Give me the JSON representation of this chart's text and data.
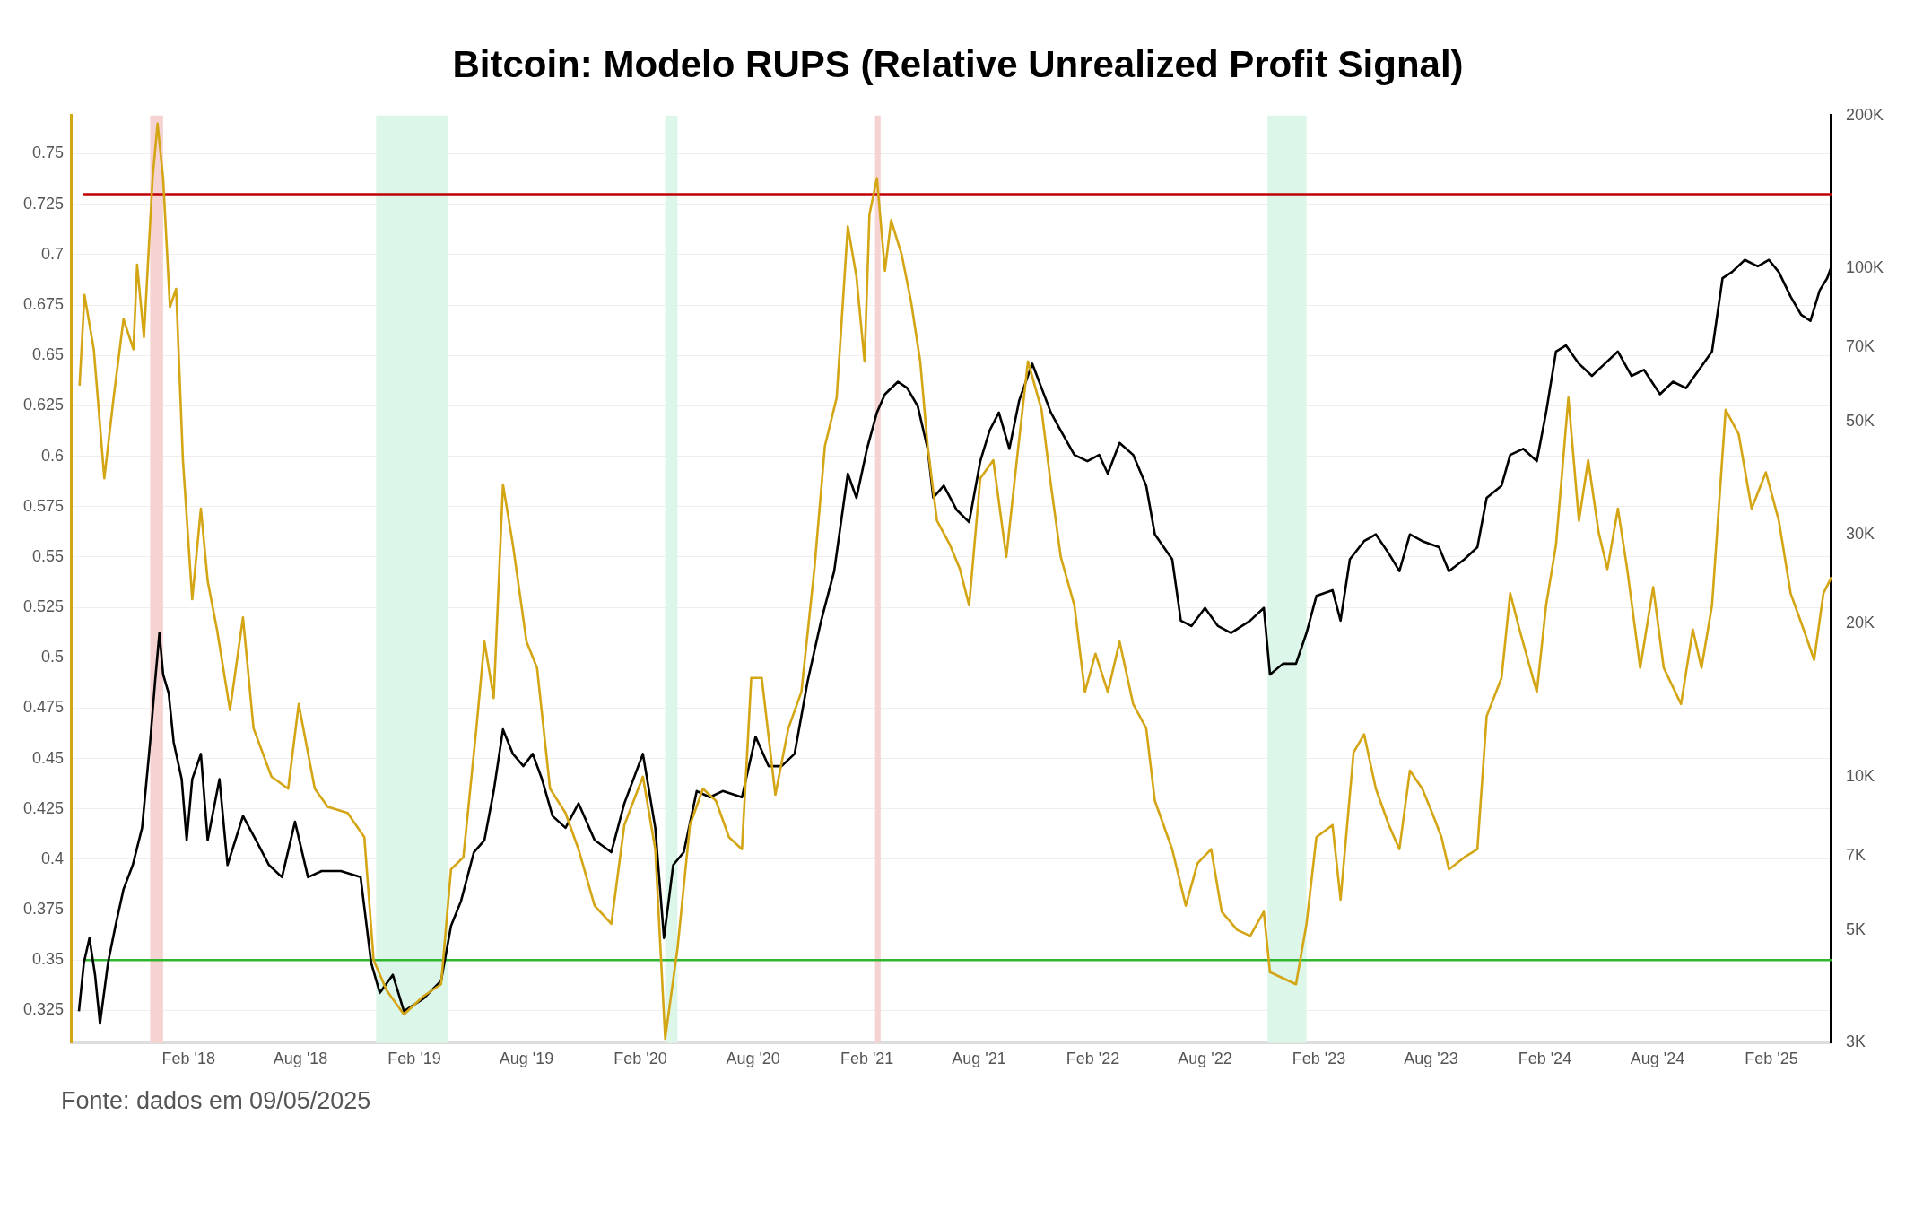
{
  "chart_data": {
    "type": "line",
    "title": "Bitcoin: Modelo RUPS (Relative Unrealized Profit Signal)",
    "annotations": [
      "Fonte: dados em 09/05/2025"
    ],
    "xlim": [
      "2017-07-26",
      "2025-05-09"
    ],
    "xticks": [
      {
        "value": "2018-02-01",
        "label": "Feb '18"
      },
      {
        "value": "2018-08-01",
        "label": "Aug '18"
      },
      {
        "value": "2019-02-01",
        "label": "Feb '19"
      },
      {
        "value": "2019-08-01",
        "label": "Aug '19"
      },
      {
        "value": "2020-02-01",
        "label": "Feb '20"
      },
      {
        "value": "2020-08-01",
        "label": "Aug '20"
      },
      {
        "value": "2021-02-01",
        "label": "Feb '21"
      },
      {
        "value": "2021-08-01",
        "label": "Aug '21"
      },
      {
        "value": "2022-02-01",
        "label": "Feb '22"
      },
      {
        "value": "2022-08-01",
        "label": "Aug '22"
      },
      {
        "value": "2023-02-01",
        "label": "Feb '23"
      },
      {
        "value": "2023-08-01",
        "label": "Aug '23"
      },
      {
        "value": "2024-02-01",
        "label": "Feb '24"
      },
      {
        "value": "2024-08-01",
        "label": "Aug '24"
      },
      {
        "value": "2025-02-01",
        "label": "Feb '25"
      }
    ],
    "ylim": [
      0.309,
      0.769
    ],
    "yticks": [
      0.325,
      0.35,
      0.375,
      0.4,
      0.425,
      0.45,
      0.475,
      0.5,
      0.525,
      0.55,
      0.575,
      0.6,
      0.625,
      0.65,
      0.675,
      0.7,
      0.725,
      0.75
    ],
    "y2lim": [
      3000,
      200000
    ],
    "y2ticks": [
      {
        "value": 3000,
        "label": "3K"
      },
      {
        "value": 5000,
        "label": "5K"
      },
      {
        "value": 7000,
        "label": "7K"
      },
      {
        "value": 10000,
        "label": "10K"
      },
      {
        "value": 20000,
        "label": "20K"
      },
      {
        "value": 30000,
        "label": "30K"
      },
      {
        "value": 50000,
        "label": "50K"
      },
      {
        "value": 70000,
        "label": "70K"
      },
      {
        "value": 100000,
        "label": "100K"
      },
      {
        "value": 200000,
        "label": "200K"
      }
    ],
    "log": "y2",
    "grid": "y",
    "legend": false,
    "marker": "none",
    "line_style": "solid",
    "ref_lines": [
      {
        "axis": "y",
        "value": 0.73,
        "color": "#c00000"
      },
      {
        "axis": "y",
        "value": 0.35,
        "color": "#2fb52f"
      }
    ],
    "bands": [
      {
        "axis": "x",
        "from": "2017-12-01",
        "to": "2017-12-22",
        "color": "#f6d3d3"
      },
      {
        "axis": "x",
        "from": "2021-02-14",
        "to": "2021-02-23",
        "color": "#f6d3d3"
      },
      {
        "axis": "x",
        "from": "2018-12-01",
        "to": "2019-03-27",
        "color": "#dcf7e9"
      },
      {
        "axis": "x",
        "from": "2020-03-12",
        "to": "2020-04-01",
        "color": "#dcf7e9"
      },
      {
        "axis": "x",
        "from": "2022-11-10",
        "to": "2023-01-12",
        "color": "#dcf7e9"
      }
    ],
    "series": [
      {
        "color": "#d4a514",
        "axis": "y",
        "x": [
          "2017-08-09",
          "2017-08-17",
          "2017-09-01",
          "2017-09-18",
          "2017-10-03",
          "2017-10-19",
          "2017-11-04",
          "2017-11-10",
          "2017-11-21",
          "2017-12-05",
          "2017-12-13",
          "2017-12-22",
          "2018-01-02",
          "2018-01-12",
          "2018-01-23",
          "2018-02-07",
          "2018-02-21",
          "2018-03-04",
          "2018-03-19",
          "2018-04-09",
          "2018-04-30",
          "2018-05-17",
          "2018-06-15",
          "2018-07-12",
          "2018-07-29",
          "2018-08-24",
          "2018-09-14",
          "2018-10-16",
          "2018-11-12",
          "2018-11-27",
          "2018-12-18",
          "2019-01-15",
          "2019-02-15",
          "2019-03-16",
          "2019-04-01",
          "2019-04-21",
          "2019-05-12",
          "2019-05-25",
          "2019-06-09",
          "2019-06-24",
          "2019-07-10",
          "2019-08-01",
          "2019-08-18",
          "2019-09-08",
          "2019-10-03",
          "2019-10-24",
          "2019-11-19",
          "2019-12-16",
          "2020-01-06",
          "2020-02-05",
          "2020-02-25",
          "2020-03-12",
          "2020-04-01",
          "2020-04-21",
          "2020-05-12",
          "2020-06-02",
          "2020-06-23",
          "2020-07-14",
          "2020-07-29",
          "2020-08-15",
          "2020-09-06",
          "2020-09-27",
          "2020-10-18",
          "2020-11-08",
          "2020-11-25",
          "2020-12-14",
          "2021-01-01",
          "2021-01-15",
          "2021-01-28",
          "2021-02-05",
          "2021-02-17",
          "2021-03-02",
          "2021-03-12",
          "2021-03-29",
          "2021-04-13",
          "2021-04-28",
          "2021-05-10",
          "2021-05-25",
          "2021-06-15",
          "2021-07-01",
          "2021-07-16",
          "2021-08-03",
          "2021-08-24",
          "2021-09-14",
          "2021-10-01",
          "2021-10-19",
          "2021-11-10",
          "2021-11-25",
          "2021-12-11",
          "2022-01-02",
          "2022-01-19",
          "2022-02-05",
          "2022-02-25",
          "2022-03-16",
          "2022-04-07",
          "2022-04-28",
          "2022-05-12",
          "2022-06-09",
          "2022-07-01",
          "2022-07-20",
          "2022-08-11",
          "2022-08-28",
          "2022-09-22",
          "2022-10-13",
          "2022-11-04",
          "2022-11-14",
          "2022-12-05",
          "2022-12-26",
          "2023-01-12",
          "2023-01-28",
          "2023-02-23",
          "2023-03-08",
          "2023-03-29",
          "2023-04-15",
          "2023-05-04",
          "2023-05-25",
          "2023-06-11",
          "2023-06-28",
          "2023-07-18",
          "2023-08-03",
          "2023-08-18",
          "2023-08-30",
          "2023-09-24",
          "2023-10-15",
          "2023-10-30",
          "2023-11-23",
          "2023-12-07",
          "2023-12-22",
          "2024-01-19",
          "2024-02-03",
          "2024-02-19",
          "2024-03-10",
          "2024-03-27",
          "2024-04-11",
          "2024-04-28",
          "2024-05-12",
          "2024-05-29",
          "2024-06-13",
          "2024-07-04",
          "2024-07-25",
          "2024-08-11",
          "2024-09-08",
          "2024-09-27",
          "2024-10-11",
          "2024-10-28",
          "2024-11-19",
          "2024-12-10",
          "2024-12-31",
          "2025-01-23",
          "2025-02-13",
          "2025-03-04",
          "2025-03-25",
          "2025-04-11",
          "2025-04-26",
          "2025-05-09"
        ],
        "values": [
          0.635,
          0.68,
          0.653,
          0.589,
          0.629,
          0.668,
          0.653,
          0.695,
          0.659,
          0.738,
          0.765,
          0.738,
          0.674,
          0.683,
          0.598,
          0.529,
          0.574,
          0.538,
          0.514,
          0.474,
          0.52,
          0.465,
          0.441,
          0.435,
          0.477,
          0.435,
          0.426,
          0.423,
          0.411,
          0.35,
          0.335,
          0.323,
          0.332,
          0.338,
          0.395,
          0.401,
          0.465,
          0.508,
          0.48,
          0.586,
          0.556,
          0.508,
          0.495,
          0.435,
          0.423,
          0.405,
          0.377,
          0.368,
          0.417,
          0.441,
          0.405,
          0.311,
          0.356,
          0.417,
          0.435,
          0.429,
          0.411,
          0.405,
          0.49,
          0.49,
          0.432,
          0.465,
          0.483,
          0.544,
          0.605,
          0.629,
          0.714,
          0.689,
          0.647,
          0.72,
          0.738,
          0.692,
          0.717,
          0.7,
          0.677,
          0.647,
          0.605,
          0.568,
          0.556,
          0.544,
          0.526,
          0.589,
          0.598,
          0.55,
          0.598,
          0.647,
          0.623,
          0.586,
          0.55,
          0.526,
          0.483,
          0.502,
          0.483,
          0.508,
          0.477,
          0.465,
          0.429,
          0.405,
          0.377,
          0.398,
          0.405,
          0.374,
          0.365,
          0.362,
          0.374,
          0.344,
          0.341,
          0.338,
          0.368,
          0.411,
          0.417,
          0.38,
          0.453,
          0.462,
          0.435,
          0.417,
          0.405,
          0.444,
          0.435,
          0.423,
          0.411,
          0.395,
          0.401,
          0.405,
          0.471,
          0.49,
          0.532,
          0.514,
          0.483,
          0.526,
          0.556,
          0.629,
          0.568,
          0.598,
          0.562,
          0.544,
          0.574,
          0.544,
          0.495,
          0.535,
          0.495,
          0.477,
          0.514,
          0.495,
          0.526,
          0.623,
          0.611,
          0.574,
          0.592,
          0.568,
          0.532,
          0.514,
          0.499,
          0.532,
          0.54
        ]
      },
      {
        "color": "#000000",
        "axis": "y2",
        "x": [
          "2017-08-08",
          "2017-08-16",
          "2017-08-25",
          "2017-09-03",
          "2017-09-11",
          "2017-09-24",
          "2017-10-06",
          "2017-10-19",
          "2017-11-03",
          "2017-11-18",
          "2017-12-01",
          "2017-12-09",
          "2017-12-16",
          "2017-12-22",
          "2017-12-31",
          "2018-01-08",
          "2018-01-21",
          "2018-01-29",
          "2018-02-07",
          "2018-02-21",
          "2018-03-04",
          "2018-03-23",
          "2018-04-05",
          "2018-04-30",
          "2018-05-21",
          "2018-06-11",
          "2018-07-02",
          "2018-07-23",
          "2018-08-13",
          "2018-09-04",
          "2018-10-05",
          "2018-11-06",
          "2018-11-23",
          "2018-12-07",
          "2018-12-28",
          "2019-01-15",
          "2019-02-15",
          "2019-03-16",
          "2019-04-01",
          "2019-04-17",
          "2019-05-08",
          "2019-05-25",
          "2019-06-09",
          "2019-06-24",
          "2019-07-10",
          "2019-07-27",
          "2019-08-11",
          "2019-08-26",
          "2019-09-12",
          "2019-10-03",
          "2019-10-24",
          "2019-11-19",
          "2019-12-16",
          "2020-01-06",
          "2020-02-05",
          "2020-02-25",
          "2020-03-10",
          "2020-03-25",
          "2020-04-11",
          "2020-05-02",
          "2020-05-23",
          "2020-06-13",
          "2020-07-14",
          "2020-08-05",
          "2020-08-26",
          "2020-09-16",
          "2020-10-07",
          "2020-10-28",
          "2020-11-19",
          "2020-12-10",
          "2021-01-01",
          "2021-01-15",
          "2021-02-01",
          "2021-02-17",
          "2021-03-02",
          "2021-03-23",
          "2021-04-07",
          "2021-04-24",
          "2021-05-10",
          "2021-05-19",
          "2021-06-05",
          "2021-06-26",
          "2021-07-16",
          "2021-08-03",
          "2021-08-18",
          "2021-09-02",
          "2021-09-19",
          "2021-10-05",
          "2021-10-26",
          "2021-11-10",
          "2021-11-25",
          "2021-12-11",
          "2022-01-02",
          "2022-01-23",
          "2022-02-11",
          "2022-02-25",
          "2022-03-16",
          "2022-04-07",
          "2022-04-28",
          "2022-05-12",
          "2022-06-09",
          "2022-06-23",
          "2022-07-10",
          "2022-08-01",
          "2022-08-22",
          "2022-09-12",
          "2022-10-13",
          "2022-11-04",
          "2022-11-14",
          "2022-12-05",
          "2022-12-26",
          "2023-01-12",
          "2023-01-28",
          "2023-02-23",
          "2023-03-08",
          "2023-03-23",
          "2023-04-15",
          "2023-05-04",
          "2023-05-25",
          "2023-06-11",
          "2023-06-28",
          "2023-07-18",
          "2023-08-14",
          "2023-08-30",
          "2023-09-24",
          "2023-10-15",
          "2023-10-30",
          "2023-11-23",
          "2023-12-07",
          "2023-12-28",
          "2024-01-19",
          "2024-02-03",
          "2024-02-19",
          "2024-03-06",
          "2024-03-27",
          "2024-04-17",
          "2024-05-08",
          "2024-05-29",
          "2024-06-20",
          "2024-07-10",
          "2024-08-05",
          "2024-08-26",
          "2024-09-16",
          "2024-10-07",
          "2024-10-28",
          "2024-11-14",
          "2024-11-29",
          "2024-12-20",
          "2025-01-10",
          "2025-01-28",
          "2025-02-13",
          "2025-03-04",
          "2025-03-21",
          "2025-04-05",
          "2025-04-20",
          "2025-05-02",
          "2025-05-09"
        ],
        "values": [
          3460,
          4310,
          4820,
          4080,
          3270,
          4310,
          5090,
          6010,
          6710,
          7940,
          11700,
          15400,
          19200,
          15900,
          14600,
          11700,
          9900,
          7510,
          9900,
          11100,
          7510,
          9900,
          6710,
          8380,
          7510,
          6710,
          6350,
          8160,
          6350,
          6530,
          6530,
          6350,
          4310,
          3760,
          4080,
          3460,
          3660,
          3970,
          5090,
          5690,
          7110,
          7510,
          9380,
          12400,
          11100,
          10500,
          11100,
          9900,
          8380,
          7940,
          8870,
          7510,
          7110,
          8870,
          11100,
          7940,
          4820,
          6710,
          7110,
          9380,
          9120,
          9380,
          9120,
          12000,
          10500,
          10500,
          11100,
          15400,
          20300,
          25400,
          39500,
          35400,
          44200,
          52100,
          56600,
          59900,
          58200,
          53600,
          44200,
          35400,
          37400,
          33500,
          31700,
          41800,
          48000,
          52100,
          44200,
          55100,
          65000,
          58200,
          52100,
          48000,
          43000,
          41800,
          43000,
          39500,
          45400,
          43000,
          37400,
          30000,
          26800,
          20300,
          19800,
          21500,
          19800,
          19200,
          20300,
          21500,
          15900,
          16700,
          16700,
          19200,
          22700,
          23300,
          20300,
          26800,
          29100,
          30000,
          27500,
          25400,
          30000,
          29100,
          28300,
          25400,
          26800,
          28300,
          35400,
          37400,
          43000,
          44200,
          41800,
          52100,
          68700,
          70600,
          65000,
          61500,
          65000,
          68700,
          61500,
          63200,
          56600,
          59900,
          58200,
          63200,
          68700,
          95700,
          98400,
          104000,
          101000,
          104000,
          98400,
          88100,
          81100,
          78900,
          90600,
          95700,
          101000
        ]
      }
    ]
  }
}
